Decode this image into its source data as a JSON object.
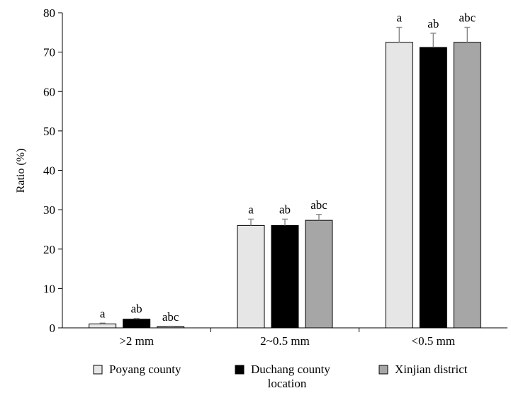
{
  "chart_data": {
    "type": "bar",
    "categories": [
      ">2 mm",
      "2~0.5 mm",
      "<0.5 mm"
    ],
    "ylabel": "Ratio (%)",
    "xlabel": "location",
    "ylim": [
      0,
      80
    ],
    "yticks": [
      0,
      10,
      20,
      30,
      40,
      50,
      60,
      70,
      80
    ],
    "legend_position": "bottom",
    "series": [
      {
        "name": "Poyang county",
        "color": "#e6e6e6",
        "values": [
          1.0,
          26.0,
          72.5
        ],
        "errors": [
          0.2,
          1.6,
          3.8
        ],
        "labels": [
          "a",
          "a",
          "a"
        ]
      },
      {
        "name": "Duchang county",
        "color": "#000000",
        "values": [
          2.2,
          26.0,
          71.2
        ],
        "errors": [
          0.2,
          1.6,
          3.6
        ],
        "labels": [
          "ab",
          "ab",
          "ab"
        ]
      },
      {
        "name": "Xinjian district",
        "color": "#a6a6a6",
        "values": [
          0.3,
          27.3,
          72.5
        ],
        "errors": [
          0.1,
          1.5,
          3.8
        ],
        "labels": [
          "abc",
          "abc",
          "abc"
        ]
      }
    ]
  }
}
